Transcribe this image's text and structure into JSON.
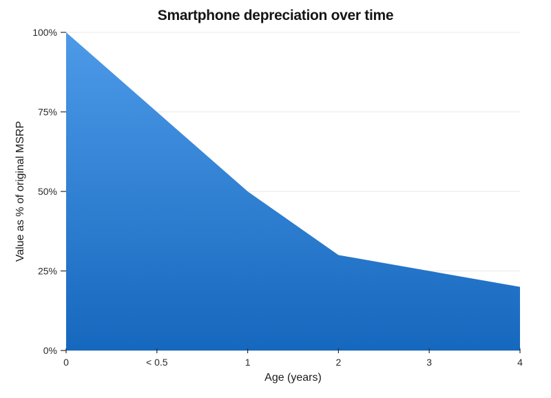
{
  "chart_data": {
    "type": "area",
    "title": "Smartphone depreciation over time",
    "xlabel": "Age (years)",
    "ylabel": "Value as % of original MSRP",
    "categories": [
      "0",
      "< 0.5",
      "1",
      "2",
      "3",
      "4"
    ],
    "values": [
      100,
      75,
      50,
      30,
      25,
      20
    ],
    "series_name": "Value as % of original MSRP",
    "ylim": [
      0,
      100
    ],
    "yticks": [
      0,
      25,
      50,
      75,
      100
    ],
    "ytick_labels": [
      "0%",
      "25%",
      "50%",
      "75%",
      "100%"
    ],
    "grid": "horizontal gridlines at 25% intervals",
    "legend_position": "none",
    "colors": {
      "area_top": "#4d9ae8",
      "area_bottom": "#1668be",
      "gridline": "#ececec",
      "axis_line": "#d8d8d8",
      "tick": "#2a2a2a",
      "label_text": "#2a2a2a",
      "title_text": "#151515",
      "background": "#ffffff"
    }
  }
}
